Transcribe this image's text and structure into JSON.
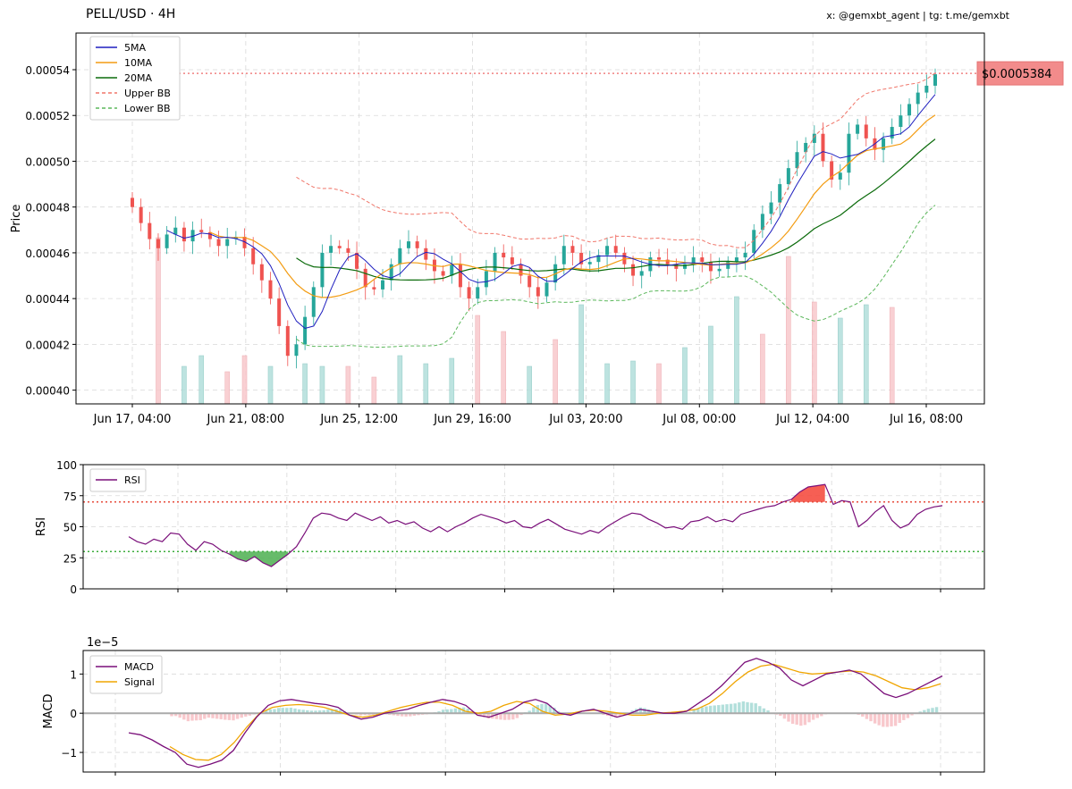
{
  "header": {
    "title": "PELL/USD · 4H",
    "credit": "x: @gemxbt_agent | tg: t.me/gemxbt"
  },
  "colors": {
    "ma5": "#1f1fbf",
    "ma10": "#f39c12",
    "ma20": "#0b6b0b",
    "upper_bb": "#f0766a",
    "lower_bb": "#5cb85c",
    "up": "#26a69a",
    "down": "#ef5350",
    "rsi": "#7a0f7a",
    "macd": "#7a0f7a",
    "signal": "#f0a500",
    "price_line": "#f08080"
  },
  "chart_data": [
    {
      "type": "candlestick",
      "ylabel": "Price",
      "ylim": [
        0.000394,
        0.000556
      ],
      "yticks": [
        "0.00040",
        "0.00042",
        "0.00044",
        "0.00046",
        "0.00048",
        "0.00050",
        "0.00052",
        "0.00054"
      ],
      "xticks": [
        "Jun 17, 04:00",
        "Jun 21, 08:00",
        "Jun 25, 12:00",
        "Jun 29, 16:00",
        "Jul 03, 20:00",
        "Jul 08, 00:00",
        "Jul 12, 04:00",
        "Jul 16, 08:00"
      ],
      "legend": [
        "5MA",
        "10MA",
        "20MA",
        "Upper BB",
        "Lower BB"
      ],
      "legend_position": "top-left",
      "current_price": 0.0005384,
      "current_price_label": "$0.0005384",
      "close": [
        0.00048,
        0.000473,
        0.000466,
        0.000462,
        0.000468,
        0.000471,
        0.000465,
        0.00047,
        0.000469,
        0.000466,
        0.000463,
        0.000466,
        0.000467,
        0.000462,
        0.000455,
        0.000448,
        0.00044,
        0.000428,
        0.000415,
        0.00042,
        0.000432,
        0.000445,
        0.00046,
        0.000463,
        0.000462,
        0.00046,
        0.000453,
        0.000445,
        0.000444,
        0.000448,
        0.000455,
        0.000462,
        0.000465,
        0.000462,
        0.000457,
        0.000452,
        0.00045,
        0.000455,
        0.000445,
        0.00044,
        0.000445,
        0.000452,
        0.00046,
        0.000458,
        0.000455,
        0.00045,
        0.000445,
        0.000441,
        0.000447,
        0.000455,
        0.000463,
        0.00046,
        0.000455,
        0.000456,
        0.000459,
        0.000463,
        0.00046,
        0.000455,
        0.00045,
        0.000452,
        0.000458,
        0.000457,
        0.000455,
        0.000453,
        0.000455,
        0.000458,
        0.000456,
        0.000452,
        0.000453,
        0.000456,
        0.000458,
        0.00046,
        0.00047,
        0.000477,
        0.000482,
        0.00049,
        0.000497,
        0.000504,
        0.000508,
        0.000512,
        0.0005,
        0.000492,
        0.000495,
        0.000512,
        0.000516,
        0.00051,
        0.000505,
        0.00051,
        0.000515,
        0.00052,
        0.000525,
        0.00053,
        0.000533,
        0.000538
      ],
      "volume_bars": [
        {
          "i": 3,
          "h": 0.62,
          "dir": "down"
        },
        {
          "i": 6,
          "h": 0.14,
          "dir": "up"
        },
        {
          "i": 8,
          "h": 0.18,
          "dir": "up"
        },
        {
          "i": 11,
          "h": 0.12,
          "dir": "down"
        },
        {
          "i": 13,
          "h": 0.18,
          "dir": "down"
        },
        {
          "i": 16,
          "h": 0.14,
          "dir": "up"
        },
        {
          "i": 20,
          "h": 0.15,
          "dir": "up"
        },
        {
          "i": 22,
          "h": 0.14,
          "dir": "up"
        },
        {
          "i": 25,
          "h": 0.14,
          "dir": "down"
        },
        {
          "i": 28,
          "h": 0.1,
          "dir": "down"
        },
        {
          "i": 31,
          "h": 0.18,
          "dir": "up"
        },
        {
          "i": 34,
          "h": 0.15,
          "dir": "up"
        },
        {
          "i": 37,
          "h": 0.17,
          "dir": "up"
        },
        {
          "i": 40,
          "h": 0.33,
          "dir": "down"
        },
        {
          "i": 43,
          "h": 0.27,
          "dir": "down"
        },
        {
          "i": 46,
          "h": 0.14,
          "dir": "up"
        },
        {
          "i": 49,
          "h": 0.24,
          "dir": "down"
        },
        {
          "i": 52,
          "h": 0.37,
          "dir": "up"
        },
        {
          "i": 55,
          "h": 0.15,
          "dir": "up"
        },
        {
          "i": 58,
          "h": 0.16,
          "dir": "up"
        },
        {
          "i": 61,
          "h": 0.15,
          "dir": "down"
        },
        {
          "i": 64,
          "h": 0.21,
          "dir": "up"
        },
        {
          "i": 67,
          "h": 0.29,
          "dir": "up"
        },
        {
          "i": 70,
          "h": 0.4,
          "dir": "up"
        },
        {
          "i": 73,
          "h": 0.26,
          "dir": "down"
        },
        {
          "i": 76,
          "h": 0.55,
          "dir": "down"
        },
        {
          "i": 79,
          "h": 0.38,
          "dir": "down"
        },
        {
          "i": 82,
          "h": 0.32,
          "dir": "up"
        },
        {
          "i": 85,
          "h": 0.37,
          "dir": "up"
        },
        {
          "i": 88,
          "h": 0.36,
          "dir": "down"
        }
      ]
    },
    {
      "type": "line",
      "ylabel": "RSI",
      "ylim": [
        0,
        100
      ],
      "yticks": [
        "0",
        "25",
        "50",
        "75",
        "100"
      ],
      "overbought": 70,
      "oversold": 30,
      "legend": [
        "RSI"
      ],
      "legend_position": "top-left",
      "values": [
        42,
        38,
        36,
        40,
        38,
        45,
        44,
        36,
        31,
        38,
        36,
        31,
        28,
        24,
        22,
        26,
        21,
        18,
        23,
        28,
        34,
        45,
        57,
        61,
        60,
        57,
        55,
        61,
        58,
        55,
        58,
        53,
        55,
        52,
        54,
        49,
        46,
        50,
        46,
        50,
        53,
        57,
        60,
        58,
        56,
        53,
        55,
        50,
        49,
        53,
        56,
        52,
        48,
        46,
        44,
        47,
        45,
        50,
        54,
        58,
        61,
        60,
        56,
        53,
        49,
        50,
        48,
        54,
        55,
        58,
        54,
        56,
        54,
        60,
        62,
        64,
        66,
        67,
        70,
        72,
        78,
        82,
        83,
        84,
        68,
        71,
        70,
        50,
        55,
        62,
        67,
        55,
        49,
        52,
        60,
        64,
        66,
        67
      ]
    },
    {
      "type": "line",
      "ylabel": "MACD",
      "scale_label": "1e−5",
      "ylim": [
        -1.5,
        1.6
      ],
      "yticks": [
        "−1",
        "0",
        "1"
      ],
      "legend": [
        "MACD",
        "Signal"
      ],
      "legend_position": "top-left",
      "macd": [
        -0.5,
        -0.55,
        -0.68,
        -0.85,
        -1.0,
        -1.3,
        -1.38,
        -1.3,
        -1.2,
        -0.95,
        -0.5,
        -0.1,
        0.2,
        0.32,
        0.35,
        0.3,
        0.25,
        0.22,
        0.15,
        -0.05,
        -0.15,
        -0.1,
        0.0,
        0.05,
        0.1,
        0.2,
        0.28,
        0.35,
        0.3,
        0.2,
        -0.05,
        -0.1,
        0.0,
        0.1,
        0.28,
        0.35,
        0.25,
        0.0,
        -0.05,
        0.05,
        0.1,
        0.0,
        -0.1,
        -0.02,
        0.1,
        0.05,
        0.0,
        0.0,
        0.05,
        0.25,
        0.45,
        0.7,
        1.0,
        1.3,
        1.4,
        1.3,
        1.15,
        0.85,
        0.7,
        0.85,
        1.0,
        1.05,
        1.1,
        1.0,
        0.75,
        0.5,
        0.4,
        0.5,
        0.65,
        0.8,
        0.95
      ],
      "signal": [
        -0.85,
        -1.05,
        -1.18,
        -1.2,
        -1.05,
        -0.75,
        -0.35,
        0.0,
        0.15,
        0.2,
        0.22,
        0.2,
        0.15,
        0.05,
        -0.05,
        -0.1,
        -0.05,
        0.05,
        0.15,
        0.22,
        0.28,
        0.28,
        0.2,
        0.05,
        0.0,
        0.05,
        0.2,
        0.3,
        0.25,
        0.05,
        -0.05,
        -0.02,
        0.05,
        0.08,
        0.05,
        0.0,
        -0.05,
        -0.05,
        0.0,
        0.02,
        0.05,
        0.1,
        0.25,
        0.5,
        0.8,
        1.05,
        1.2,
        1.25,
        1.15,
        1.05,
        1.0,
        1.02,
        1.05,
        1.08,
        1.05,
        0.95,
        0.8,
        0.65,
        0.6,
        0.65,
        0.75
      ]
    }
  ]
}
